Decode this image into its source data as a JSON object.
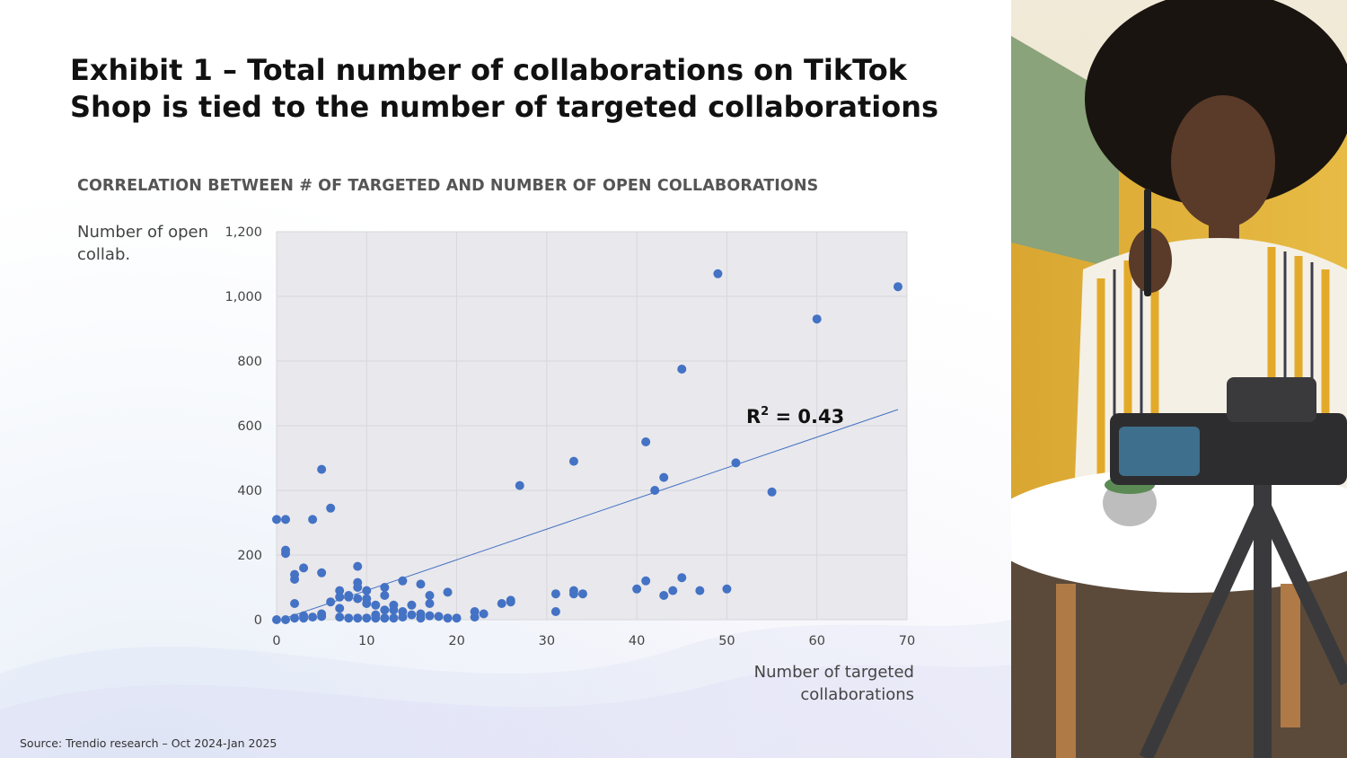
{
  "title": "Exhibit 1 – Total number of collaborations on TikTok Shop is tied to the number of targeted collaborations",
  "subtitle": "CORRELATION BETWEEN # OF TARGETED AND NUMBER OF OPEN COLLABORATIONS",
  "y_axis_label": "Number of open collab.",
  "x_axis_label": "Number of targeted collaborations",
  "source": "Source: Trendio research – Oct 2024-Jan 2025",
  "photo": {
    "description_icon": "photo-creator-recording-icon"
  },
  "colors": {
    "points": "#4472c4",
    "trendline": "#4472c4",
    "plot_bg": "#e9e8ec",
    "grid": "#d8d7dc"
  },
  "chart_data": {
    "type": "scatter",
    "title": "CORRELATION BETWEEN # OF TARGETED AND NUMBER OF OPEN COLLABORATIONS",
    "xlabel": "Number of targeted collaborations",
    "ylabel": "Number of open collab.",
    "xlim": [
      0,
      70
    ],
    "ylim": [
      0,
      1200
    ],
    "x_ticks": [
      0,
      10,
      20,
      30,
      40,
      50,
      60,
      70
    ],
    "y_ticks": [
      0,
      200,
      400,
      600,
      800,
      1000,
      1200
    ],
    "x_tick_labels": [
      "0",
      "10",
      "20",
      "30",
      "40",
      "50",
      "60",
      "70"
    ],
    "y_tick_labels": [
      "0",
      "200",
      "400",
      "600",
      "800",
      "1,000",
      "1,200"
    ],
    "grid": true,
    "annotation": "R² = 0.43",
    "annotation_text": {
      "base": "R",
      "sup": "2",
      "rest": " = 0.43"
    },
    "trendline": {
      "x": [
        1,
        69
      ],
      "y": [
        5,
        650
      ]
    },
    "points": [
      [
        0,
        310
      ],
      [
        1,
        310
      ],
      [
        1,
        215
      ],
      [
        1,
        205
      ],
      [
        2,
        140
      ],
      [
        2,
        125
      ],
      [
        2,
        50
      ],
      [
        3,
        160
      ],
      [
        4,
        310
      ],
      [
        5,
        465
      ],
      [
        5,
        145
      ],
      [
        6,
        345
      ],
      [
        9,
        165
      ],
      [
        9,
        115
      ],
      [
        9,
        100
      ],
      [
        12,
        100
      ],
      [
        14,
        120
      ],
      [
        16,
        110
      ],
      [
        19,
        85
      ],
      [
        7,
        90
      ],
      [
        8,
        75
      ],
      [
        10,
        90
      ],
      [
        7,
        70
      ],
      [
        6,
        55
      ],
      [
        8,
        70
      ],
      [
        9,
        65
      ],
      [
        10,
        65
      ],
      [
        10,
        50
      ],
      [
        11,
        45
      ],
      [
        12,
        75
      ],
      [
        13,
        45
      ],
      [
        14,
        25
      ],
      [
        15,
        45
      ],
      [
        17,
        75
      ],
      [
        17,
        50
      ],
      [
        0,
        0
      ],
      [
        1,
        0
      ],
      [
        2,
        5
      ],
      [
        3,
        5
      ],
      [
        3,
        12
      ],
      [
        4,
        8
      ],
      [
        5,
        10
      ],
      [
        5,
        18
      ],
      [
        7,
        35
      ],
      [
        7,
        8
      ],
      [
        8,
        5
      ],
      [
        9,
        5
      ],
      [
        10,
        5
      ],
      [
        11,
        5
      ],
      [
        11,
        15
      ],
      [
        12,
        5
      ],
      [
        12,
        30
      ],
      [
        13,
        5
      ],
      [
        13,
        30
      ],
      [
        14,
        8
      ],
      [
        15,
        15
      ],
      [
        16,
        5
      ],
      [
        16,
        18
      ],
      [
        17,
        12
      ],
      [
        18,
        10
      ],
      [
        19,
        5
      ],
      [
        20,
        5
      ],
      [
        22,
        25
      ],
      [
        22,
        8
      ],
      [
        23,
        18
      ],
      [
        25,
        50
      ],
      [
        26,
        55
      ],
      [
        26,
        60
      ],
      [
        27,
        415
      ],
      [
        31,
        80
      ],
      [
        31,
        25
      ],
      [
        33,
        490
      ],
      [
        33,
        90
      ],
      [
        33,
        80
      ],
      [
        34,
        80
      ],
      [
        40,
        95
      ],
      [
        41,
        550
      ],
      [
        41,
        120
      ],
      [
        42,
        400
      ],
      [
        43,
        440
      ],
      [
        43,
        75
      ],
      [
        44,
        90
      ],
      [
        45,
        775
      ],
      [
        45,
        130
      ],
      [
        47,
        90
      ],
      [
        49,
        1070
      ],
      [
        50,
        95
      ],
      [
        51,
        485
      ],
      [
        55,
        395
      ],
      [
        60,
        930
      ],
      [
        69,
        1030
      ]
    ]
  }
}
